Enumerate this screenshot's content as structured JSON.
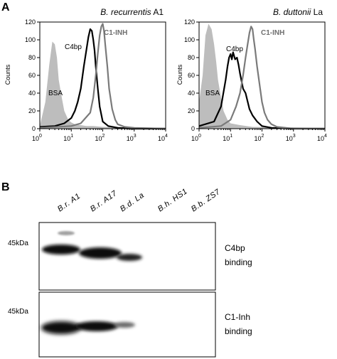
{
  "panel_a": {
    "letter": "A",
    "plots": [
      {
        "title_italic": "B. recurrentis",
        "title_rest": " A1",
        "ylabel": "Counts",
        "x_ticks": [
          "10",
          "10",
          "10",
          "10",
          "10"
        ],
        "x_exps": [
          "0",
          "1",
          "2",
          "3",
          "4"
        ],
        "y_ticks": [
          "0",
          "20",
          "40",
          "60",
          "80",
          "100",
          "120"
        ],
        "labels": {
          "bsa": "BSA",
          "c4bp": "C4bp",
          "c1inh": "C1-INH"
        }
      },
      {
        "title_italic": "B. duttonii",
        "title_rest": " La",
        "ylabel": "Counts",
        "x_ticks": [
          "10",
          "10",
          "10",
          "10",
          "10"
        ],
        "x_exps": [
          "0",
          "1",
          "2",
          "3",
          "4"
        ],
        "y_ticks": [
          "0",
          "20",
          "40",
          "60",
          "80",
          "100",
          "120"
        ],
        "labels": {
          "bsa": "BSA",
          "c4bp": "C4bp",
          "c1inh": "C1-INH"
        }
      }
    ]
  },
  "chart_data": [
    {
      "type": "area",
      "title": "B. recurrentis A1",
      "ylabel": "Counts",
      "x_scale": "log",
      "xlim": [
        1,
        10000
      ],
      "ylim": [
        0,
        120
      ],
      "series": [
        {
          "name": "BSA",
          "color": "#bdbdbd",
          "fill": true,
          "x": [
            1,
            1.5,
            2,
            2.5,
            3,
            3.5,
            4,
            5,
            6,
            8,
            10,
            13,
            20,
            30,
            50,
            100,
            10000
          ],
          "y": [
            3,
            30,
            72,
            98,
            95,
            80,
            55,
            35,
            20,
            10,
            7,
            5,
            4,
            3,
            3,
            2,
            1
          ]
        },
        {
          "name": "C4bp",
          "color": "#000000",
          "x": [
            1,
            3,
            6,
            10,
            13,
            16,
            20,
            25,
            30,
            35,
            40,
            45,
            50,
            55,
            60,
            70,
            80,
            100,
            150,
            300,
            1000,
            10000
          ],
          "y": [
            2,
            3,
            6,
            12,
            20,
            30,
            45,
            70,
            88,
            103,
            112,
            110,
            100,
            88,
            70,
            45,
            25,
            8,
            3,
            1,
            0,
            0
          ]
        },
        {
          "name": "C1-INH",
          "color": "#7a7a7a",
          "x": [
            1,
            10,
            20,
            40,
            50,
            60,
            70,
            80,
            90,
            100,
            110,
            120,
            140,
            160,
            200,
            250,
            300,
            500,
            1000,
            10000
          ],
          "y": [
            1,
            3,
            6,
            18,
            35,
            60,
            85,
            105,
            115,
            118,
            110,
            95,
            70,
            45,
            22,
            10,
            5,
            2,
            1,
            0
          ]
        }
      ]
    },
    {
      "type": "area",
      "title": "B. duttonii La",
      "ylabel": "Counts",
      "x_scale": "log",
      "xlim": [
        1,
        10000
      ],
      "ylim": [
        0,
        120
      ],
      "series": [
        {
          "name": "BSA",
          "color": "#bdbdbd",
          "fill": true,
          "x": [
            1,
            1.3,
            1.6,
            2,
            2.5,
            3,
            3.5,
            4,
            5,
            6,
            8,
            10,
            20,
            50,
            10000
          ],
          "y": [
            30,
            60,
            105,
            118,
            112,
            95,
            75,
            55,
            35,
            20,
            10,
            6,
            4,
            2,
            1
          ]
        },
        {
          "name": "C4bp",
          "color": "#000000",
          "x": [
            1,
            3,
            5,
            7,
            8,
            9,
            10,
            11,
            12,
            14,
            16,
            18,
            20,
            25,
            30,
            40,
            50,
            70,
            100,
            200,
            1000,
            10000
          ],
          "y": [
            3,
            8,
            25,
            55,
            70,
            80,
            84,
            78,
            86,
            78,
            80,
            72,
            62,
            45,
            40,
            22,
            15,
            8,
            3,
            1,
            0,
            0
          ]
        },
        {
          "name": "C1-INH",
          "color": "#7a7a7a",
          "x": [
            1,
            5,
            10,
            15,
            20,
            25,
            30,
            35,
            40,
            45,
            50,
            55,
            60,
            70,
            80,
            100,
            120,
            150,
            200,
            300,
            1000,
            10000
          ],
          "y": [
            1,
            3,
            10,
            25,
            40,
            60,
            80,
            95,
            108,
            115,
            112,
            100,
            90,
            70,
            55,
            30,
            18,
            10,
            5,
            2,
            0,
            0
          ]
        }
      ]
    }
  ],
  "panel_b": {
    "letter": "B",
    "lanes": [
      "B.r. A1",
      "B.r. A17",
      "B.d. La",
      "B.h. HS1",
      "B.b. ZS7"
    ],
    "blots": [
      {
        "marker": "45kDa",
        "label_line1": "C4bp",
        "label_line2": "binding"
      },
      {
        "marker": "45kDa",
        "label_line1": "C1-Inh",
        "label_line2": "binding"
      }
    ]
  }
}
